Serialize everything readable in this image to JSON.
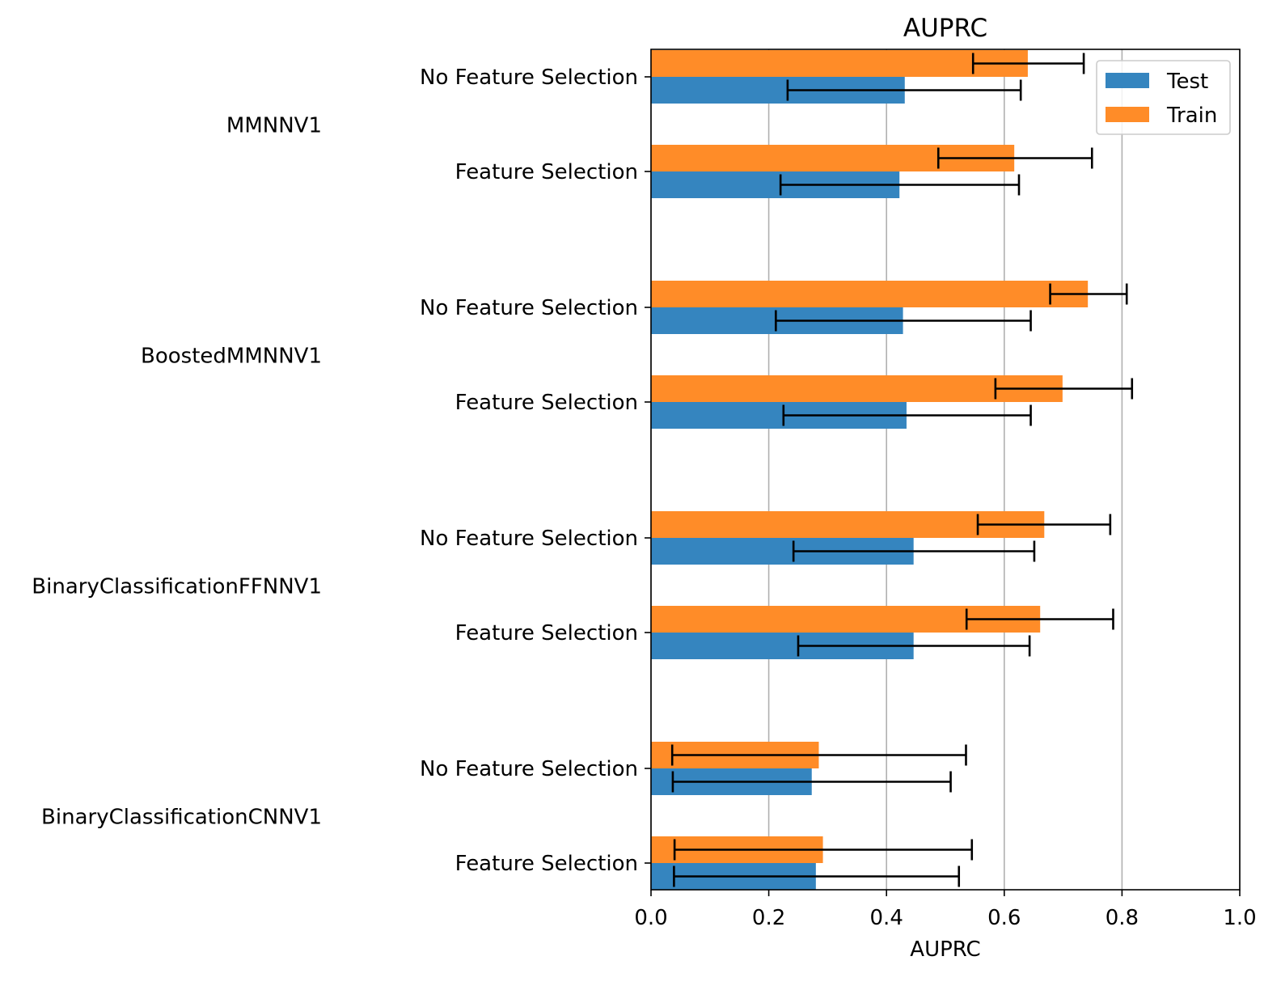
{
  "chart_data": {
    "type": "bar",
    "orientation": "horizontal",
    "title": "AUPRC",
    "xlabel": "AUPRC",
    "ylabel": "",
    "xlim": [
      0,
      1.0
    ],
    "xticks": [
      "0.0",
      "0.2",
      "0.4",
      "0.6",
      "0.8",
      "1.0"
    ],
    "grid": "x",
    "legend_position": "top-right",
    "series": [
      {
        "name": "Test",
        "color": "#3585bf"
      },
      {
        "name": "Train",
        "color": "#ff8c28"
      }
    ],
    "groups": [
      {
        "name": "MMNNV1",
        "rows": [
          {
            "label": "No Feature Selection",
            "train": 0.64,
            "train_err": [
              0.547,
              0.735
            ],
            "test": 0.431,
            "test_err": [
              0.232,
              0.628
            ]
          },
          {
            "label": "Feature Selection",
            "train": 0.617,
            "train_err": [
              0.488,
              0.749
            ],
            "test": 0.422,
            "test_err": [
              0.22,
              0.625
            ]
          }
        ]
      },
      {
        "name": "BoostedMMNNV1",
        "rows": [
          {
            "label": "No Feature Selection",
            "train": 0.742,
            "train_err": [
              0.678,
              0.808
            ],
            "test": 0.428,
            "test_err": [
              0.212,
              0.645
            ]
          },
          {
            "label": "Feature Selection",
            "train": 0.699,
            "train_err": [
              0.585,
              0.817
            ],
            "test": 0.434,
            "test_err": [
              0.225,
              0.645
            ]
          }
        ]
      },
      {
        "name": "BinaryClassificationFFNNV1",
        "rows": [
          {
            "label": "No Feature Selection",
            "train": 0.668,
            "train_err": [
              0.555,
              0.78
            ],
            "test": 0.446,
            "test_err": [
              0.242,
              0.651
            ]
          },
          {
            "label": "Feature Selection",
            "train": 0.661,
            "train_err": [
              0.536,
              0.785
            ],
            "test": 0.446,
            "test_err": [
              0.25,
              0.643
            ]
          }
        ]
      },
      {
        "name": "BinaryClassificationCNNV1",
        "rows": [
          {
            "label": "No Feature Selection",
            "train": 0.285,
            "train_err": [
              0.036,
              0.535
            ],
            "test": 0.273,
            "test_err": [
              0.037,
              0.509
            ]
          },
          {
            "label": "Feature Selection",
            "train": 0.292,
            "train_err": [
              0.04,
              0.545
            ],
            "test": 0.28,
            "test_err": [
              0.039,
              0.523
            ]
          }
        ]
      }
    ]
  }
}
